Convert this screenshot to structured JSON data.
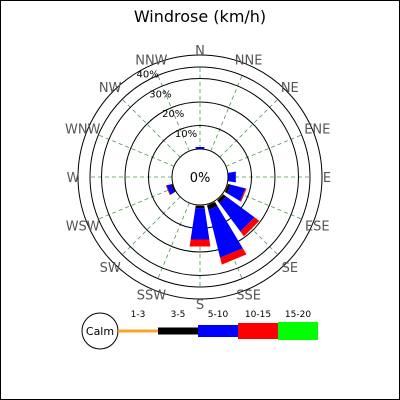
{
  "chart_data": {
    "type": "windrose",
    "title": "Windrose (km/h)",
    "directions": [
      "N",
      "NNE",
      "NE",
      "ENE",
      "E",
      "ESE",
      "SE",
      "SSE",
      "S",
      "SSW",
      "SW",
      "WSW",
      "W",
      "WNW",
      "NW",
      "NNW"
    ],
    "ring_labels": [
      "10%",
      "20%",
      "30%",
      "40%"
    ],
    "ring_values": [
      10,
      20,
      30,
      40
    ],
    "center_label": "0%",
    "legend": {
      "calm_label": "Calm",
      "bins": [
        {
          "label": "1-3",
          "color": "#f5a623"
        },
        {
          "label": "3-5",
          "color": "#000000"
        },
        {
          "label": "5-10",
          "color": "#0000ff"
        },
        {
          "label": "10-15",
          "color": "#ff0000"
        },
        {
          "label": "15-20",
          "color": "#00ff00"
        }
      ]
    },
    "series": [
      {
        "name": "1-3",
        "values": [
          0,
          0,
          0,
          0,
          0,
          0.5,
          0.5,
          0.5,
          0.5,
          0,
          0,
          0.3,
          0,
          0,
          0,
          0
        ]
      },
      {
        "name": "3-5",
        "values": [
          0,
          0,
          0,
          0,
          0,
          1.0,
          1.5,
          2.0,
          1.0,
          0,
          0,
          0.5,
          0,
          0,
          0,
          0
        ]
      },
      {
        "name": "5-10",
        "values": [
          1.0,
          0,
          0,
          0,
          3.5,
          6.5,
          15.0,
          21.0,
          13.5,
          0,
          0,
          2.0,
          0,
          0,
          0,
          0
        ]
      },
      {
        "name": "10-15",
        "values": [
          0,
          0,
          0,
          0,
          0,
          0.5,
          2.5,
          3.0,
          3.0,
          0,
          0,
          0.3,
          0,
          0,
          0,
          0
        ]
      },
      {
        "name": "15-20",
        "values": [
          0,
          0,
          0,
          0,
          0,
          0,
          0,
          0,
          0,
          0,
          0,
          0,
          0,
          0,
          0,
          0
        ]
      }
    ]
  }
}
